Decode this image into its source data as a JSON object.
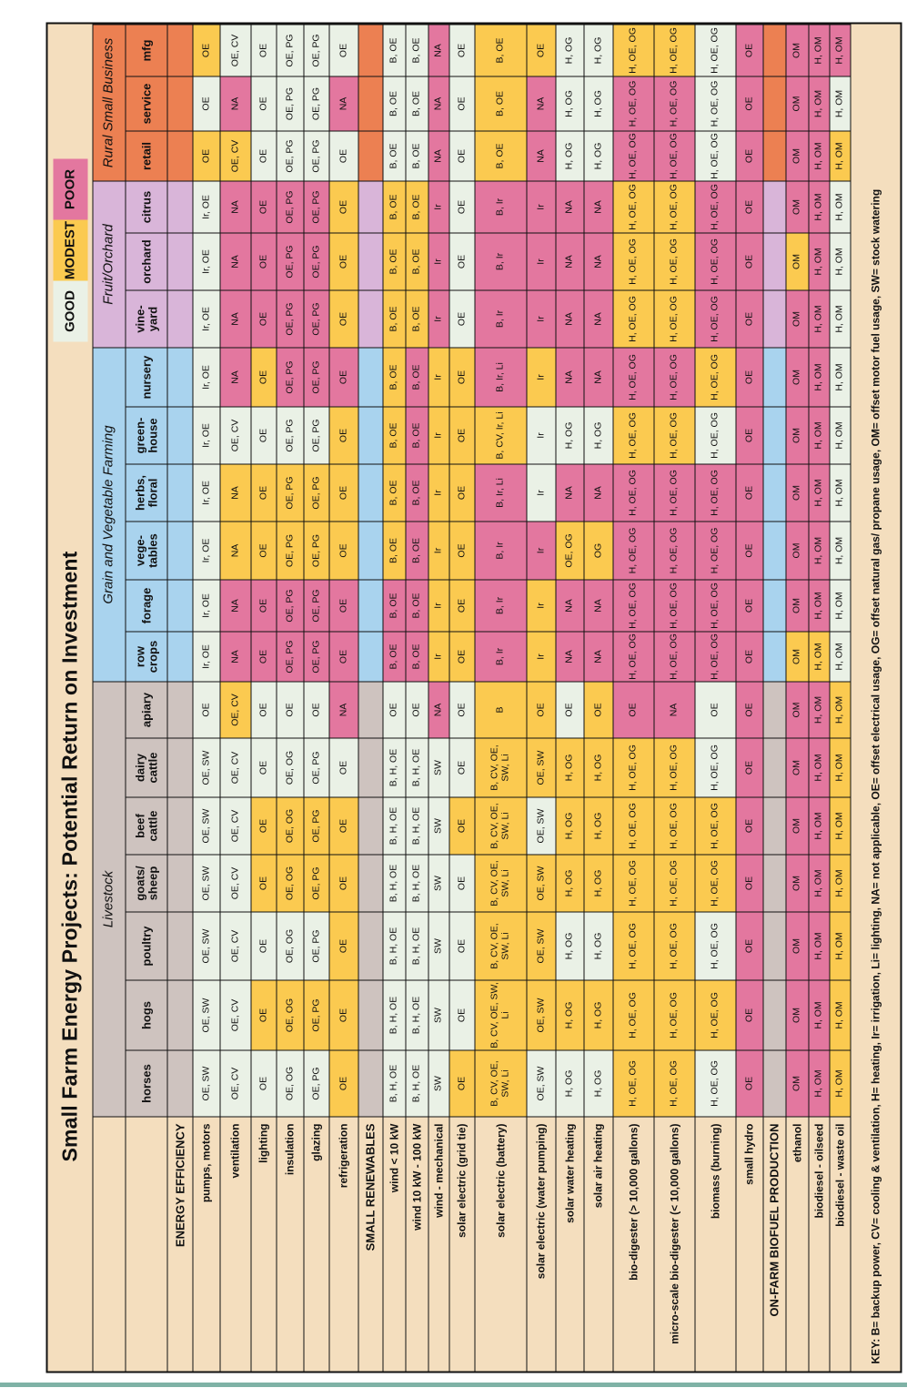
{
  "title": "Small Farm Energy Projects: Potential Return on Investment",
  "legend": {
    "good_label": "GOOD",
    "modest_label": "MODEST",
    "poor_label": "POOR"
  },
  "key_text": "KEY: B= backup power, CV= cooling & ventilation, H= heating, Ir= irrigation, Li= lighting, NA= not applicable, OE= offset electrical usage, OG= offset natural gas/ propane usage, OM= offset motor fuel usage, SW= stock watering",
  "palette": {
    "good": "#EAF1E6",
    "modest": "#FBCA50",
    "poor": "#E3779F",
    "livestock": "#CEC3BF",
    "grain": "#A9D3EE",
    "fruit": "#D9B5D9",
    "rsb": "#EC8052",
    "label_bg": "#F4DEBE",
    "border": "#111111",
    "accent_line": "#7FB2A6"
  },
  "table": {
    "groups": [
      {
        "label": "Livestock",
        "color": "livestock",
        "span": 7
      },
      {
        "label": "Grain and Vegetable Farming",
        "color": "grain",
        "span": 6
      },
      {
        "label": "Fruit/Orchard",
        "color": "fruit",
        "span": 3
      },
      {
        "label": "Rural Small Business",
        "color": "rsb",
        "span": 3
      }
    ],
    "columns": [
      "horses",
      "hogs",
      "poultry",
      "goats/\nsheep",
      "beef\ncattle",
      "dairy\ncattle",
      "apiary",
      "row\ncrops",
      "forage",
      "vege-\ntables",
      "herbs,\nfloral",
      "green-\nhouse",
      "nursery",
      "vine-\nyard",
      "orchard",
      "citrus",
      "retail",
      "service",
      "mfg"
    ],
    "rows": [
      {
        "label": "ENERGY EFFICIENCY",
        "type": "section"
      },
      {
        "label": "pumps, motors",
        "type": "data",
        "values": [
          "OE, SW",
          "OE, SW",
          "OE, SW",
          "OE, SW",
          "OE, SW",
          "OE, SW",
          "OE",
          "Ir, OE",
          "Ir, OE",
          "Ir, OE",
          "Ir, OE",
          "Ir, OE",
          "Ir, OE",
          "Ir, OE",
          "Ir, OE",
          "Ir, OE",
          "OE",
          "OE",
          "OE"
        ],
        "colors": "GGGGGGGGGGGGGGGGMGM"
      },
      {
        "label": "ventilation",
        "type": "data",
        "values": [
          "OE, CV",
          "OE, CV",
          "OE, CV",
          "OE, CV",
          "OE, CV",
          "OE, CV",
          "OE, CV",
          "NA",
          "NA",
          "NA",
          "NA",
          "OE, CV",
          "NA",
          "NA",
          "NA",
          "NA",
          "OE, CV",
          "NA",
          "OE, CV"
        ],
        "colors": "GGGGGGMPPMMGPPPPMPG"
      },
      {
        "label": "lighting",
        "type": "data",
        "values": [
          "OE",
          "OE",
          "OE",
          "OE",
          "OE",
          "OE",
          "OE",
          "OE",
          "OE",
          "OE",
          "OE",
          "OE",
          "OE",
          "OE",
          "OE",
          "OE",
          "OE",
          "OE",
          "OE"
        ],
        "colors": "GMGMMGGPPMMGMPPPGGG"
      },
      {
        "label": "insulation",
        "type": "data",
        "values": [
          "OE, OG",
          "OE, OG",
          "OE, OG",
          "OE, OG",
          "OE, OG",
          "OE, OG",
          "OE",
          "OE, PG",
          "OE, PG",
          "OE, PG",
          "OE, PG",
          "OE, PG",
          "OE, PG",
          "OE, PG",
          "OE, PG",
          "OE, PG",
          "OE, PG",
          "OE, PG",
          "OE, PG"
        ],
        "colors": "GMGMMGGPPMMGPPPPGGG"
      },
      {
        "label": "glazing",
        "type": "data",
        "values": [
          "OE, PG",
          "OE, PG",
          "OE, PG",
          "OE, PG",
          "OE, PG",
          "OE, PG",
          "OE",
          "OE, PG",
          "OE, PG",
          "OE, PG",
          "OE, PG",
          "OE, PG",
          "OE, PG",
          "OE, PG",
          "OE, PG",
          "OE, PG",
          "OE, PG",
          "OE, PG",
          "OE, PG"
        ],
        "colors": "GMGMMGGPPMMGPPPPGGG"
      },
      {
        "label": "refrigeration",
        "type": "data",
        "values": [
          "OE",
          "OE",
          "OE",
          "OE",
          "OE",
          "OE",
          "NA",
          "OE",
          "OE",
          "OE",
          "OE",
          "OE",
          "OE",
          "OE",
          "OE",
          "OE",
          "OE",
          "NA",
          "OE"
        ],
        "colors": "MMMMMGPPPMMMPMMMGPG"
      },
      {
        "label": "SMALL RENEWABLES",
        "type": "section"
      },
      {
        "label": "wind < 10 kW",
        "type": "data",
        "values": [
          "B, H, OE",
          "B, H, OE",
          "B, H, OE",
          "B, H, OE",
          "B, H, OE",
          "B, H, OE",
          "OE",
          "B, OE",
          "B, OE",
          "B, OE",
          "B, OE",
          "B, OE",
          "B, OE",
          "B, OE",
          "B, OE",
          "B, OE",
          "B, OE",
          "B, OE",
          "B, OE"
        ],
        "colors": "GGGGGGGPPMMMMMMMGGG"
      },
      {
        "label": "wind 10 kW - 100 kW",
        "type": "data",
        "values": [
          "B, H, OE",
          "B, H, OE",
          "B, H, OE",
          "B, H, OE",
          "B, H, OE",
          "B, H, OE",
          "OE",
          "B, OE",
          "B, OE",
          "B, OE",
          "B, OE",
          "B, OE",
          "B, OE",
          "B, OE",
          "B, OE",
          "B, OE",
          "B, OE",
          "B, OE",
          "B, OE"
        ],
        "colors": "GGGGGGGPPPPPPMMMGGG"
      },
      {
        "label": "wind - mechanical",
        "type": "data",
        "values": [
          "SW",
          "SW",
          "SW",
          "SW",
          "SW",
          "SW",
          "NA",
          "Ir",
          "Ir",
          "Ir",
          "Ir",
          "Ir",
          "Ir",
          "Ir",
          "Ir",
          "Ir",
          "NA",
          "NA",
          "NA"
        ],
        "colors": "GGGGGGPMMMMMMPPPPPP"
      },
      {
        "label": "solar electric (grid tie)",
        "type": "data",
        "values": [
          "OE",
          "OE",
          "OE",
          "OE",
          "OE",
          "OE",
          "OE",
          "OE",
          "OE",
          "OE",
          "OE",
          "OE",
          "OE",
          "OE",
          "OE",
          "OE",
          "OE",
          "OE",
          "OE"
        ],
        "colors": "MGGGMGGMMMMMMGGGGGG"
      },
      {
        "label": "solar electric (battery)",
        "type": "data",
        "values": [
          "B, CV, OE, SW, Li",
          "B, CV, OE, SW, Li",
          "B, CV, OE, SW, Li",
          "B, CV, OE, SW, Li",
          "B, CV, OE, SW, Li",
          "B, CV, OE, SW, Li",
          "B",
          "B, Ir",
          "B, Ir",
          "B, Ir",
          "B, Ir, Li",
          "B, CV, Ir, Li",
          "B, Ir, Li",
          "B, Ir",
          "B, Ir",
          "B, Ir",
          "B, OE",
          "B, OE",
          "B, OE"
        ],
        "colors": "MMMMMMMPPPPMPPPPMMM"
      },
      {
        "label": "solar electric (water pumping)",
        "type": "data",
        "values": [
          "OE, SW",
          "OE, SW",
          "OE, SW",
          "OE, SW",
          "OE, SW",
          "OE, SW",
          "OE",
          "Ir",
          "Ir",
          "Ir",
          "Ir",
          "Ir",
          "Ir",
          "Ir",
          "Ir",
          "Ir",
          "NA",
          "NA",
          "OE"
        ],
        "colors": "GMMMGMMMMPGGMPPPPPM"
      },
      {
        "label": "solar water heating",
        "type": "data",
        "values": [
          "H, OG",
          "H, OG",
          "H, OG",
          "H, OG",
          "H, OG",
          "H, OG",
          "OE",
          "NA",
          "NA",
          "OE, OG",
          "NA",
          "H, OG",
          "NA",
          "NA",
          "NA",
          "NA",
          "H, OG",
          "H, OG",
          "H, OG"
        ],
        "colors": "GMGMMMGPPMPGPPPPGGG"
      },
      {
        "label": "solar air heating",
        "type": "data",
        "values": [
          "H, OG",
          "H, OG",
          "H, OG",
          "H, OG",
          "H, OG",
          "H, OG",
          "OE",
          "NA",
          "NA",
          "OG",
          "NA",
          "H, OG",
          "NA",
          "NA",
          "NA",
          "NA",
          "H, OG",
          "H, OG",
          "H, OG"
        ],
        "colors": "GMGMMMMPPMPGPPPPGGG"
      },
      {
        "label": "bio-digester (> 10,000 gallons)",
        "type": "data",
        "values": [
          "H, OE, OG",
          "H, OE, OG",
          "H, OE, OG",
          "H, OE, OG",
          "H, OE, OG",
          "H, OE, OG",
          "OE",
          "H, OE, OG",
          "H, OE, OG",
          "H, OE, OG",
          "H, OE, OG",
          "H, OE, OG",
          "H, OE, OG",
          "H, OE, OG",
          "H, OE, OG",
          "H, OE, OG",
          "H, OE, OG",
          "H, OE, OG",
          "H, OE, OG"
        ],
        "colors": "MMMMMMPPPPPMPMMMPPM"
      },
      {
        "label": "micro-scale bio-digester (< 10,000 gallons)",
        "type": "data",
        "values": [
          "H, OE, OG",
          "H, OE, OG",
          "H, OE, OG",
          "H, OE, OG",
          "H, OE, OG",
          "H, OE, OG",
          "NA",
          "H, OE, OG",
          "H, OE, OG",
          "H, OE, OG",
          "H, OE, OG",
          "H, OE, OG",
          "H, OE, OG",
          "H, OE, OG",
          "H, OE, OG",
          "H, OE, OG",
          "H, OE, OG",
          "H, OE, OG",
          "H, OE, OG"
        ],
        "colors": "MMMMMMPPPPPMPMMMPPM"
      },
      {
        "label": "biomass (burning)",
        "type": "data",
        "values": [
          "H, OE, OG",
          "H, OE, OG",
          "H, OE, OG",
          "H, OE, OG",
          "H, OE, OG",
          "H, OE, OG",
          "OE",
          "H, OE, OG",
          "H, OE, OG",
          "H, OE, OG",
          "H, OE, OG",
          "H, OE, OG",
          "H, OE, OG",
          "H, OE, OG",
          "H, OE, OG",
          "H, OE, OG",
          "H, OE, OG",
          "H, OE, OG",
          "H, OE, OG"
        ],
        "colors": "GMGMMGGPPPPGMPPPGGG"
      },
      {
        "label": "small hydro",
        "type": "data",
        "values": [
          "OE",
          "OE",
          "OE",
          "OE",
          "OE",
          "OE",
          "OE",
          "OE",
          "OE",
          "OE",
          "OE",
          "OE",
          "OE",
          "OE",
          "OE",
          "OE",
          "OE",
          "OE",
          "OE"
        ],
        "colors": "PPPPPPPPPPPPPPPPPPP"
      },
      {
        "label": "ON-FARM BIOFUEL PRODUCTION",
        "type": "section"
      },
      {
        "label": "ethanol",
        "type": "data",
        "values": [
          "OM",
          "OM",
          "OM",
          "OM",
          "OM",
          "OM",
          "OM",
          "OM",
          "OM",
          "OM",
          "OM",
          "OM",
          "OM",
          "OM",
          "OM",
          "OM",
          "OM",
          "OM",
          "OM"
        ],
        "colors": "PPPPPPPMPPPPPPMPPPP"
      },
      {
        "label": "biodiesel - oilseed",
        "type": "data",
        "values": [
          "H, OM",
          "H, OM",
          "H, OM",
          "H, OM",
          "H, OM",
          "H, OM",
          "H, OM",
          "H, OM",
          "H, OM",
          "H, OM",
          "H, OM",
          "H, OM",
          "H, OM",
          "H, OM",
          "H, OM",
          "H, OM",
          "H, OM",
          "H, OM",
          "H, OM"
        ],
        "colors": "PPPPPPPMPPPPPPPPPPP"
      },
      {
        "label": "biodiesel - waste oil",
        "type": "data",
        "values": [
          "H, OM",
          "H, OM",
          "H, OM",
          "H, OM",
          "H, OM",
          "H, OM",
          "H, OM",
          "H, OM",
          "H, OM",
          "H, OM",
          "H, OM",
          "H, OM",
          "H, OM",
          "H, OM",
          "H, OM",
          "H, OM",
          "H, OM",
          "H, OM",
          "H, OM"
        ],
        "colors": "MMMMMMMGGGGGGGGGMGP"
      }
    ]
  }
}
